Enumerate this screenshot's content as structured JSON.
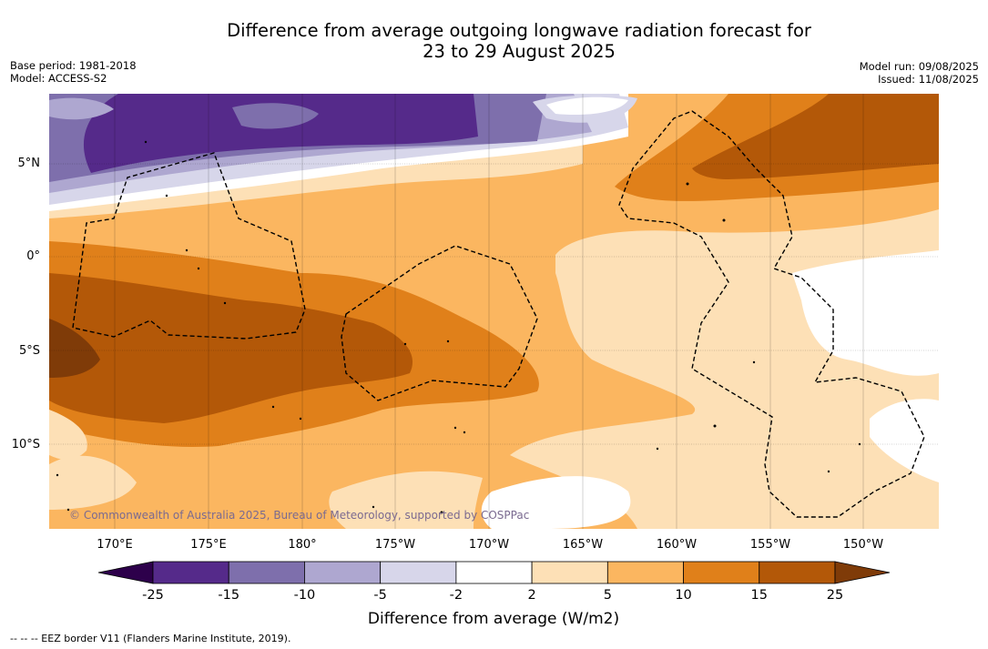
{
  "title_line1": "Difference from average outgoing longwave radiation forecast for",
  "title_line2": "23 to 29 August 2025",
  "base_period": "Base period: 1981-2018",
  "model": "Model: ACCESS-S2",
  "model_run": "Model run: 09/08/2025",
  "issued": "Issued: 11/08/2025",
  "copyright": "© Commonwealth of Australia 2025, Bureau of Meteorology, supported by COSPPac",
  "footnote": "--  --  -- EEZ border V11 (Flanders Marine Institute, 2019).",
  "lon_ticks": [
    "170°E",
    "175°E",
    "180°",
    "175°W",
    "170°W",
    "165°W",
    "160°W",
    "155°W",
    "150°W"
  ],
  "lat_ticks": [
    "5°N",
    "0°",
    "5°S",
    "10°S"
  ],
  "colorbar": {
    "title": "Difference from average (W/m2)",
    "labels": [
      "-25",
      "-15",
      "-10",
      "-5",
      "-2",
      "2",
      "5",
      "10",
      "15",
      "25"
    ],
    "colors": [
      "#552a8a",
      "#7e6fac",
      "#aea7d0",
      "#d7d6ea",
      "#ffffff",
      "#fde0b6",
      "#fbb660",
      "#e0801a",
      "#b35808"
    ],
    "extend_low_color": "#2d004b",
    "extend_high_color": "#7f3b08"
  }
}
